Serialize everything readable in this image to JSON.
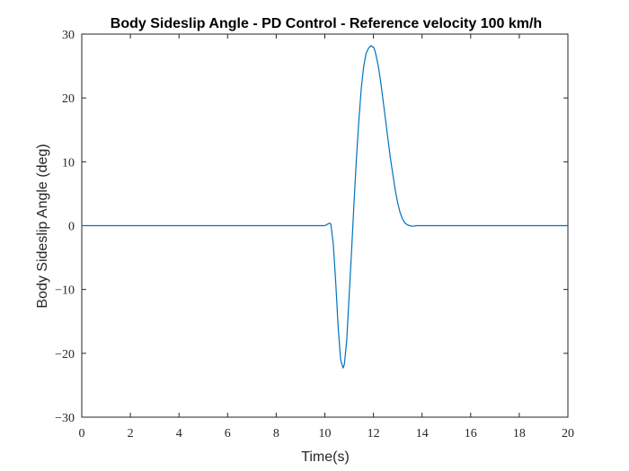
{
  "chart_data": {
    "type": "line",
    "title": "Body Sideslip Angle - PD Control - Reference velocity 100 km/h",
    "xlabel": "Time(s)",
    "ylabel": "Body Sideslip Angle (deg)",
    "xlim": [
      0,
      20
    ],
    "ylim": [
      -30,
      30
    ],
    "xticks": [
      0,
      2,
      4,
      6,
      8,
      10,
      12,
      14,
      16,
      18,
      20
    ],
    "yticks": [
      -30,
      -20,
      -10,
      0,
      10,
      20,
      30
    ],
    "xtick_labels": [
      "0",
      "2",
      "4",
      "6",
      "8",
      "10",
      "12",
      "14",
      "16",
      "18",
      "20"
    ],
    "ytick_labels": [
      "−30",
      "−20",
      "−10",
      "0",
      "10",
      "20",
      "30"
    ],
    "grid": false,
    "series": [
      {
        "color": "#0072BD",
        "x": [
          0,
          10.0,
          10.1,
          10.2,
          10.25,
          10.35,
          10.45,
          10.55,
          10.65,
          10.75,
          10.8,
          10.9,
          11.0,
          11.1,
          11.2,
          11.3,
          11.4,
          11.5,
          11.6,
          11.7,
          11.8,
          11.9,
          11.95,
          12.0,
          12.05,
          12.1,
          12.2,
          12.3,
          12.4,
          12.5,
          12.6,
          12.7,
          12.8,
          12.9,
          13.0,
          13.1,
          13.2,
          13.3,
          13.4,
          13.5,
          13.6,
          13.8,
          14.0,
          16.0,
          18.0,
          20.0
        ],
        "y": [
          0,
          0,
          0.2,
          0.4,
          0.2,
          -3.0,
          -9.0,
          -16.0,
          -21.0,
          -22.3,
          -21.8,
          -18.0,
          -11.0,
          -4.0,
          3.5,
          10.5,
          16.5,
          21.5,
          25.0,
          27.0,
          27.8,
          28.2,
          28.0,
          28.0,
          27.5,
          26.8,
          25.0,
          22.5,
          19.5,
          16.5,
          13.5,
          10.5,
          8.0,
          5.5,
          3.5,
          2.0,
          1.0,
          0.4,
          0.1,
          0,
          -0.1,
          0,
          0,
          0,
          0,
          0
        ]
      }
    ]
  }
}
